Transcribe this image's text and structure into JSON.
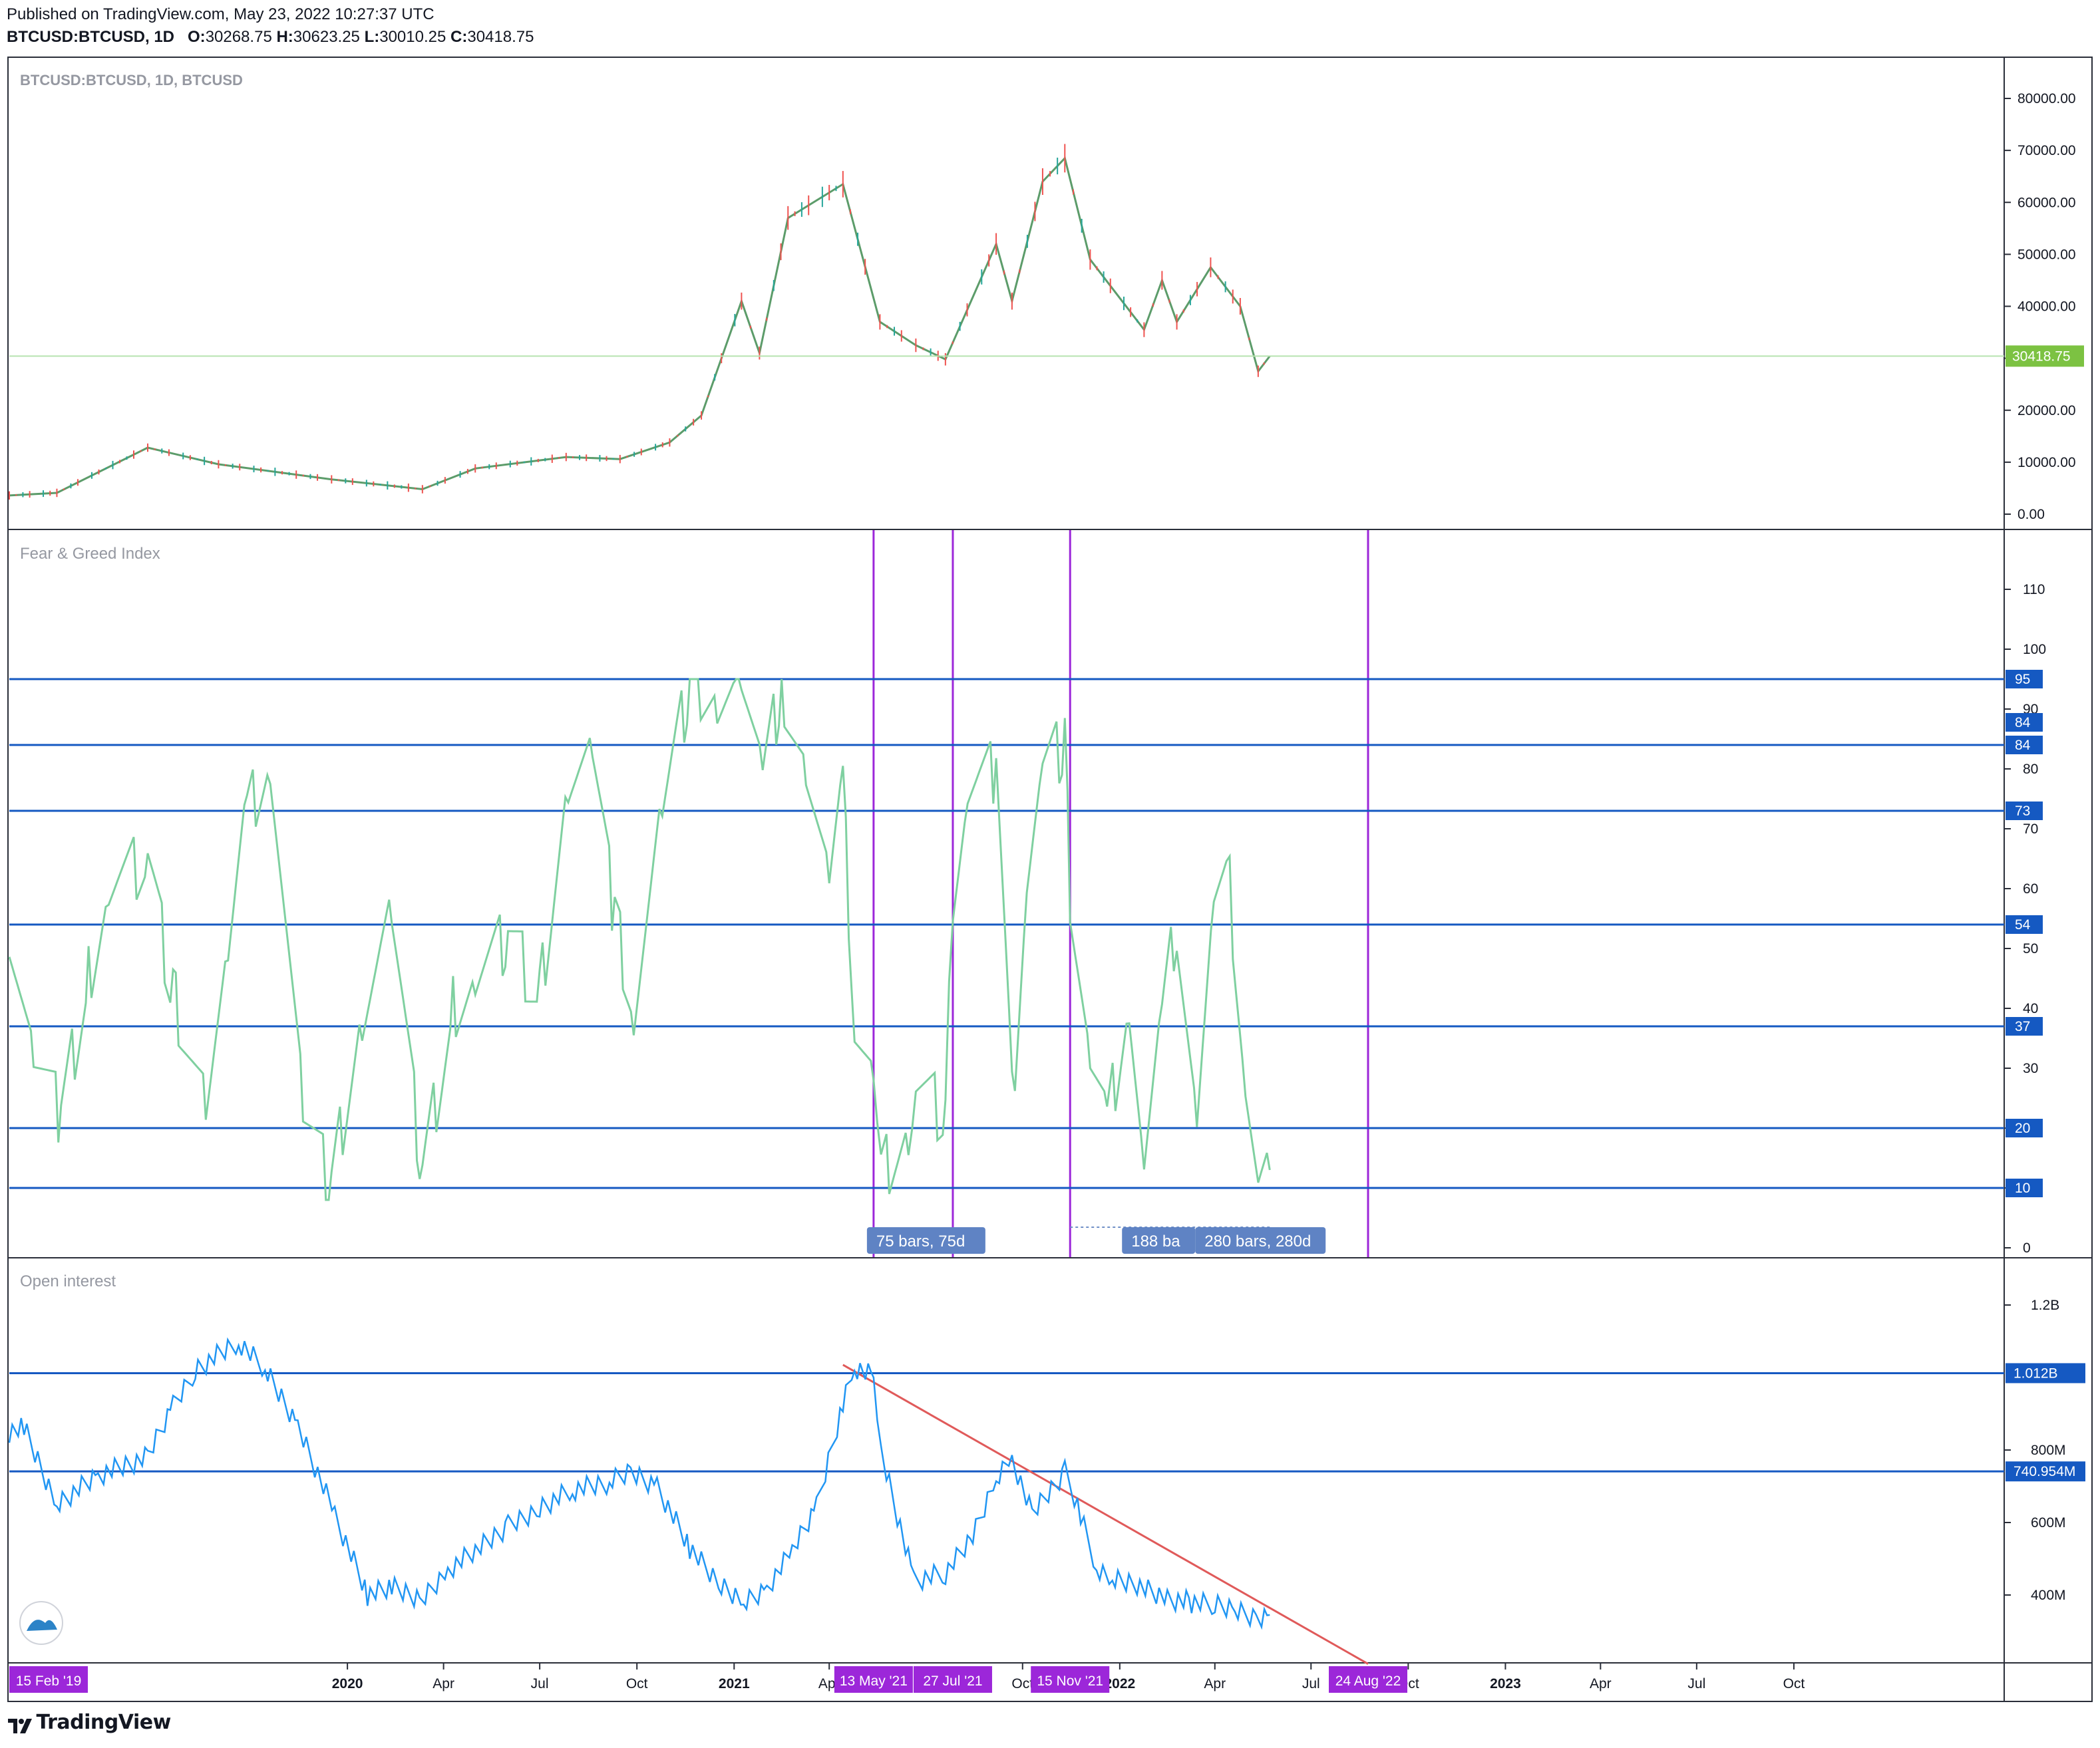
{
  "header": {
    "published": "Published on TradingView.com, May 23, 2022 10:27:37 UTC",
    "symbol": "BTCUSD:BTCUSD, 1D",
    "o_label": "O:",
    "o_value": "30268.75",
    "h_label": "H:",
    "h_value": "30623.25",
    "l_label": "L:",
    "l_value": "30010.25",
    "c_label": "C:",
    "c_value": "30418.75"
  },
  "footer": {
    "brand": "TradingView"
  },
  "colors": {
    "up": "#26a69a",
    "down": "#ef5350",
    "fng": "#7fd0a0",
    "oi": "#2196f3",
    "hline": "#1559c2",
    "vline": "#9c27d9",
    "trend": "#e05a5a",
    "last_price_bg": "#7cc242",
    "date_tag_bg": "#9c27d9"
  },
  "chart_data": [
    {
      "type": "line",
      "title": "BTCUSD:BTCUSD, 1D, BTCUSD",
      "ylim": [
        -3000,
        85000
      ],
      "y_ticks": [
        "0.00",
        "10000.00",
        "20000.00",
        "30000.00",
        "40000.00",
        "50000.00",
        "60000.00",
        "70000.00",
        "80000.00"
      ],
      "y_tick_values": [
        0,
        10000,
        20000,
        30000,
        40000,
        50000,
        60000,
        70000,
        80000
      ],
      "last_price": 30418.75,
      "last_price_label": "30418.75",
      "series": [
        {
          "x": [
            "2019-02-15",
            "2019-04-01",
            "2019-06-26",
            "2019-09-01",
            "2019-12-17",
            "2020-03-12",
            "2020-05-01",
            "2020-07-26",
            "2020-09-15",
            "2020-11-01",
            "2020-12-01",
            "2021-01-08",
            "2021-01-25",
            "2021-02-21",
            "2021-04-14",
            "2021-05-19",
            "2021-06-22",
            "2021-07-20",
            "2021-09-06",
            "2021-09-21",
            "2021-10-20",
            "2021-11-10",
            "2021-12-04",
            "2022-01-24",
            "2022-02-10",
            "2022-02-24",
            "2022-03-28",
            "2022-04-25",
            "2022-05-12",
            "2022-05-23"
          ],
          "values": [
            3600,
            4100,
            12800,
            9600,
            6700,
            4800,
            8800,
            11000,
            10600,
            13800,
            19000,
            41000,
            31000,
            57000,
            63500,
            37000,
            32500,
            29800,
            52000,
            41000,
            64000,
            68500,
            49000,
            35500,
            45000,
            37000,
            47500,
            40000,
            27500,
            30418
          ]
        }
      ]
    },
    {
      "type": "line",
      "title": "Fear & Greed Index",
      "ylim": [
        -2,
        120
      ],
      "y_ticks": [
        "0",
        "10",
        "20",
        "30",
        "40",
        "50",
        "60",
        "70",
        "80",
        "90",
        "100",
        "110"
      ],
      "y_tick_values": [
        0,
        10,
        20,
        30,
        40,
        50,
        60,
        70,
        80,
        90,
        100,
        110
      ],
      "horizontal_lines": [
        95,
        84,
        84,
        73,
        54,
        37,
        20,
        10
      ],
      "horizontal_line_labels": [
        "95",
        "84",
        "84",
        "73",
        "54",
        "37",
        "20",
        "10"
      ],
      "vertical_line_dates": [
        "2021-05-13",
        "2021-07-27",
        "2021-11-15",
        "2022-08-24"
      ],
      "measure_labels": [
        "75 bars, 75d",
        "188 ba",
        "280 bars, 280d"
      ],
      "series": [
        {
          "x": [
            "2019-02-15",
            "2019-03-10",
            "2019-04-05",
            "2019-05-01",
            "2019-05-20",
            "2019-06-26",
            "2019-07-20",
            "2019-08-20",
            "2019-09-10",
            "2019-09-28",
            "2019-10-20",
            "2019-11-20",
            "2019-12-17",
            "2020-01-15",
            "2020-02-12",
            "2020-03-12",
            "2020-04-10",
            "2020-05-01",
            "2020-06-01",
            "2020-07-01",
            "2020-07-28",
            "2020-08-20",
            "2020-09-10",
            "2020-09-28",
            "2020-10-25",
            "2020-11-20",
            "2020-12-16",
            "2021-01-08",
            "2021-01-28",
            "2021-02-15",
            "2021-03-10",
            "2021-04-01",
            "2021-04-14",
            "2021-04-25",
            "2021-05-13",
            "2021-05-20",
            "2021-06-15",
            "2021-06-22",
            "2021-07-20",
            "2021-07-27",
            "2021-08-10",
            "2021-09-06",
            "2021-09-21",
            "2021-10-05",
            "2021-10-20",
            "2021-11-10",
            "2021-11-15",
            "2021-12-04",
            "2021-12-20",
            "2022-01-10",
            "2022-01-24",
            "2022-02-10",
            "2022-02-24",
            "2022-03-15",
            "2022-03-31",
            "2022-04-15",
            "2022-04-30",
            "2022-05-12",
            "2022-05-23"
          ],
          "values": [
            54,
            32,
            22,
            45,
            60,
            65,
            42,
            25,
            48,
            72,
            82,
            22,
            10,
            40,
            56,
            12,
            40,
            45,
            52,
            42,
            78,
            82,
            55,
            40,
            73,
            94,
            93,
            95,
            78,
            94,
            80,
            60,
            76,
            38,
            28,
            12,
            20,
            27,
            22,
            60,
            76,
            80,
            24,
            62,
            80,
            84,
            58,
            30,
            20,
            42,
            14,
            38,
            55,
            22,
            56,
            60,
            28,
            10,
            13
          ]
        }
      ]
    },
    {
      "type": "line",
      "title": "Open interest",
      "ylim": [
        210000000,
        1320000000
      ],
      "y_ticks": [
        "400M",
        "600M",
        "800M",
        "1.2B"
      ],
      "y_tick_values": [
        400000000,
        600000000,
        800000000,
        1200000000
      ],
      "horizontal_lines": [
        1012000000,
        740954000
      ],
      "horizontal_line_labels": [
        "1.012B",
        "740.954M"
      ],
      "trendline": {
        "x": [
          "2021-04-14",
          "2022-08-24"
        ],
        "values": [
          1035000000,
          210000000
        ]
      },
      "series": [
        {
          "x": [
            "2019-02-15",
            "2019-03-01",
            "2019-04-01",
            "2019-05-10",
            "2019-06-26",
            "2019-07-20",
            "2019-08-10",
            "2019-09-20",
            "2019-10-15",
            "2019-11-15",
            "2019-12-20",
            "2020-01-20",
            "2020-02-12",
            "2020-03-12",
            "2020-04-05",
            "2020-05-01",
            "2020-06-01",
            "2020-07-01",
            "2020-08-01",
            "2020-09-05",
            "2020-09-25",
            "2020-10-20",
            "2020-11-20",
            "2020-12-20",
            "2021-01-10",
            "2021-02-01",
            "2021-02-25",
            "2021-03-20",
            "2021-04-14",
            "2021-04-25",
            "2021-05-13",
            "2021-05-20",
            "2021-06-20",
            "2021-07-20",
            "2021-08-15",
            "2021-09-06",
            "2021-09-21",
            "2021-10-10",
            "2021-11-10",
            "2021-11-25",
            "2021-12-10",
            "2021-12-25",
            "2022-01-20",
            "2022-02-15",
            "2022-03-10",
            "2022-04-01",
            "2022-04-20",
            "2022-05-10",
            "2022-05-23"
          ],
          "values": [
            850000000,
            860000000,
            650000000,
            730000000,
            780000000,
            920000000,
            1020000000,
            1100000000,
            1020000000,
            870000000,
            620000000,
            400000000,
            420000000,
            390000000,
            470000000,
            520000000,
            590000000,
            640000000,
            690000000,
            710000000,
            740000000,
            700000000,
            530000000,
            420000000,
            380000000,
            420000000,
            520000000,
            640000000,
            930000000,
            1030000000,
            1000000000,
            800000000,
            440000000,
            460000000,
            560000000,
            720000000,
            780000000,
            620000000,
            740000000,
            620000000,
            480000000,
            440000000,
            430000000,
            390000000,
            380000000,
            370000000,
            360000000,
            340000000,
            345000000
          ]
        }
      ]
    }
  ],
  "x_axis": {
    "ticks": [
      {
        "date": "2020-01-01",
        "label": "2020",
        "bold": true
      },
      {
        "date": "2020-04-01",
        "label": "Apr",
        "bold": false
      },
      {
        "date": "2020-07-01",
        "label": "Jul",
        "bold": false
      },
      {
        "date": "2020-10-01",
        "label": "Oct",
        "bold": false
      },
      {
        "date": "2021-01-01",
        "label": "2021",
        "bold": true
      },
      {
        "date": "2021-04-01",
        "label": "Apr",
        "bold": false
      },
      {
        "date": "2021-10-01",
        "label": "Oct",
        "bold": false
      },
      {
        "date": "2022-01-01",
        "label": "2022",
        "bold": true
      },
      {
        "date": "2022-04-01",
        "label": "Apr",
        "bold": false
      },
      {
        "date": "2022-07-01",
        "label": "Jul",
        "bold": false
      },
      {
        "date": "2022-10-01",
        "label": "Oct",
        "bold": false
      },
      {
        "date": "2023-01-01",
        "label": "2023",
        "bold": true
      },
      {
        "date": "2023-04-01",
        "label": "Apr",
        "bold": false
      },
      {
        "date": "2023-07-01",
        "label": "Jul",
        "bold": false
      },
      {
        "date": "2023-10-01",
        "label": "Oct",
        "bold": false
      }
    ],
    "date_tags": [
      {
        "date": "2019-02-15",
        "label": "15 Feb '19"
      },
      {
        "date": "2021-05-13",
        "label": "13 May '21"
      },
      {
        "date": "2021-07-27",
        "label": "27 Jul '21"
      },
      {
        "date": "2021-11-15",
        "label": "15 Nov '21"
      },
      {
        "date": "2022-08-24",
        "label": "24 Aug '22"
      }
    ]
  }
}
